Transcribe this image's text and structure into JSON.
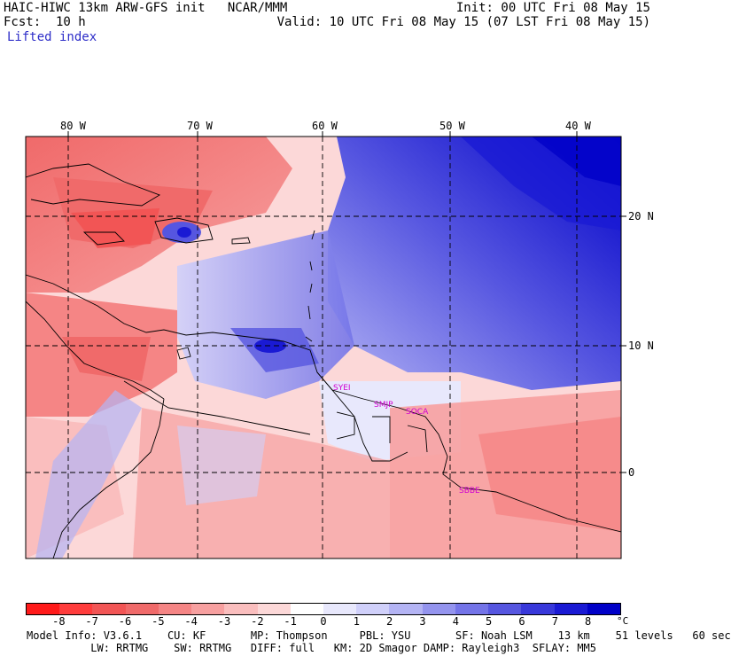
{
  "header": {
    "line1_left": "HAIC-HIWC 13km ARW-GFS init   NCAR/MMM",
    "line2_left": "Fcst:  10 h",
    "line3_left": "Lifted index",
    "line1_right": "Init: 00 UTC Fri 08 May 15",
    "line2_right": "Valid: 10 UTC Fri 08 May 15 (07 LST Fri 08 May 15)"
  },
  "map": {
    "lon_labels": [
      "80 W",
      "70 W",
      "60 W",
      "50 W",
      "40 W"
    ],
    "lat_labels": [
      "20 N",
      "10 N",
      "0"
    ],
    "stations": [
      "SYEI",
      "SMJP",
      "SOCA",
      "SBBE"
    ]
  },
  "colorbar": {
    "unit": "°C",
    "labels": [
      "-8",
      "-7",
      "-6",
      "-5",
      "-4",
      "-3",
      "-2",
      "-1",
      "0",
      "1",
      "2",
      "3",
      "4",
      "5",
      "6",
      "7",
      "8"
    ],
    "colors": [
      "#ff1a1a",
      "#ff3c3c",
      "#f25555",
      "#f06a6a",
      "#f58585",
      "#f7a0a0",
      "#fabebe",
      "#fcd8d8",
      "#ffffff",
      "#e8e8fc",
      "#d0d0fa",
      "#b4b4f4",
      "#9494ee",
      "#7474e8",
      "#5656e0",
      "#3838da",
      "#1a1ad4",
      "#0000c8"
    ]
  },
  "footer": {
    "line1": "Model Info: V3.6.1    CU: KF       MP: Thompson     PBL: YSU       SF: Noah LSM    13 km    51 levels   60 sec",
    "line2": "          LW: RRTMG    SW: RRTMG   DIFF: full   KM: 2D Smagor DAMP: Rayleigh3  SFLAY: MM5"
  }
}
